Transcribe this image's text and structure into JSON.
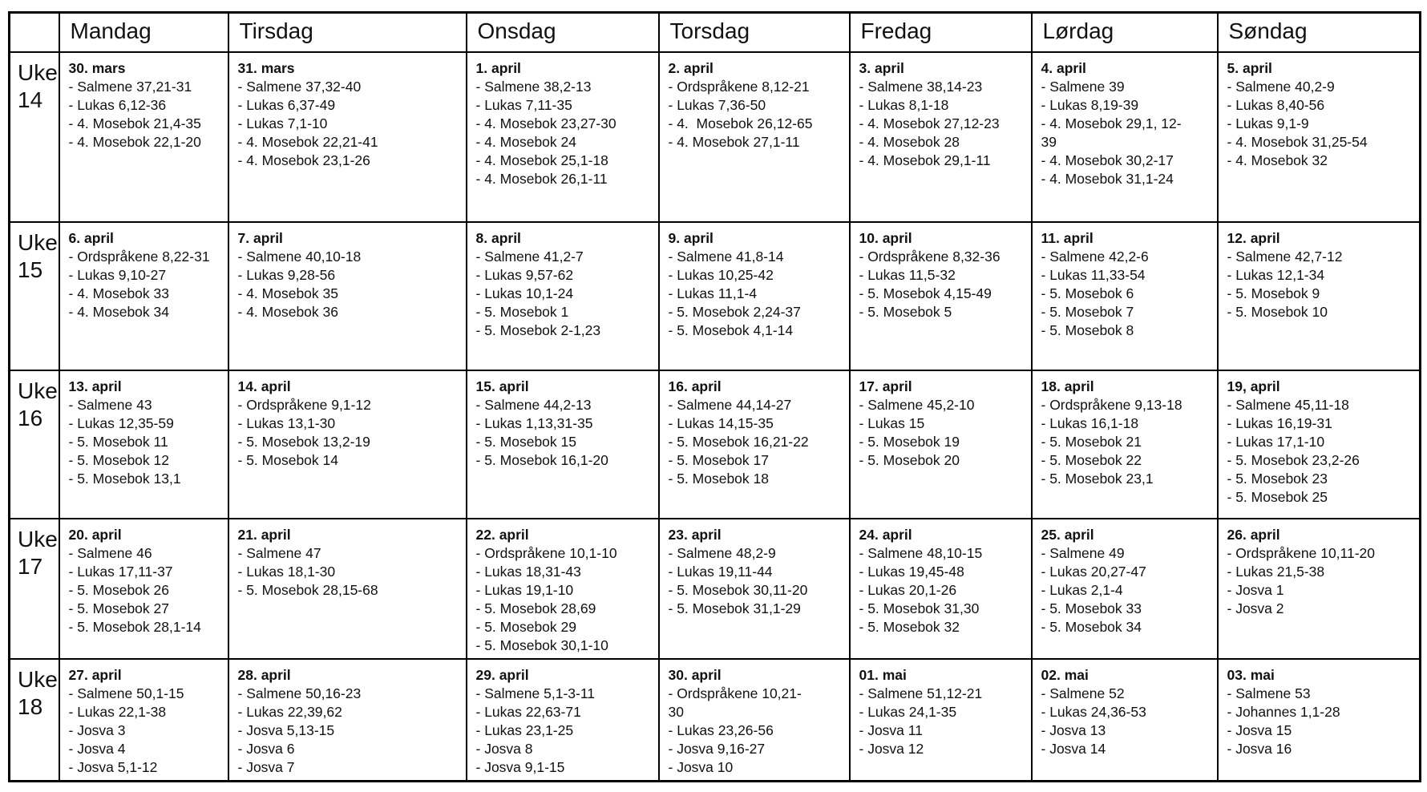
{
  "colors": {
    "bg": "#ffffff",
    "text": "#111111",
    "border": "#000000"
  },
  "table": {
    "corner_label": "",
    "day_headers": [
      "Mandag",
      "Tirsdag",
      "Onsdag",
      "Torsdag",
      "Fredag",
      "Lørdag",
      "Søndag"
    ],
    "weeks": [
      {
        "label_top": "Uke",
        "label_num": "14",
        "days": [
          {
            "date": "30. mars",
            "readings": [
              "- Salmene 37,21-31",
              "- Lukas 6,12-36",
              "- 4. Mosebok 21,4-35",
              "- 4. Mosebok 22,1-20"
            ]
          },
          {
            "date": "31. mars",
            "readings": [
              "- Salmene 37,32-40",
              "- Lukas 6,37-49",
              "- Lukas 7,1-10",
              "- 4. Mosebok 22,21-41",
              "- 4. Mosebok 23,1-26"
            ]
          },
          {
            "date": "1. april",
            "readings": [
              "- Salmene 38,2-13",
              "- Lukas 7,11-35",
              "- 4. Mosebok 23,27-30",
              "- 4. Mosebok 24",
              "- 4. Mosebok 25,1-18",
              "- 4. Mosebok 26,1-11"
            ]
          },
          {
            "date": "2. april",
            "readings": [
              "- Ordspråkene 8,12-21",
              "- Lukas 7,36-50",
              "- 4.  Mosebok 26,12-65",
              "- 4. Mosebok 27,1-11"
            ]
          },
          {
            "date": "3. april",
            "readings": [
              "- Salmene 38,14-23",
              "- Lukas 8,1-18",
              "- 4. Mosebok 27,12-23",
              "- 4. Mosebok 28",
              "- 4. Mosebok 29,1-11"
            ]
          },
          {
            "date": "4. april",
            "readings": [
              "- Salmene 39",
              "- Lukas 8,19-39",
              "- 4. Mosebok 29,1, 12-\n39",
              "- 4. Mosebok 30,2-17",
              "- 4. Mosebok 31,1-24"
            ]
          },
          {
            "date": "5. april",
            "readings": [
              "- Salmene 40,2-9",
              "- Lukas 8,40-56",
              "- Lukas 9,1-9",
              "- 4. Mosebok 31,25-54",
              "- 4. Mosebok 32"
            ]
          }
        ]
      },
      {
        "label_top": "Uke",
        "label_num": "15",
        "days": [
          {
            "date": "6. april",
            "readings": [
              "- Ordspråkene 8,22-31",
              "- Lukas 9,10-27",
              "- 4. Mosebok 33",
              "- 4. Mosebok 34"
            ]
          },
          {
            "date": "7. april",
            "readings": [
              "- Salmene 40,10-18",
              "- Lukas 9,28-56",
              "- 4. Mosebok 35",
              "- 4. Mosebok 36"
            ]
          },
          {
            "date": "8. april",
            "readings": [
              "- Salmene 41,2-7",
              "- Lukas 9,57-62",
              "- Lukas 10,1-24",
              "- 5. Mosebok 1",
              "- 5. Mosebok 2-1,23"
            ]
          },
          {
            "date": "9. april",
            "readings": [
              "- Salmene 41,8-14",
              "- Lukas 10,25-42",
              "- Lukas 11,1-4",
              "- 5. Mosebok 2,24-37",
              "- 5. Mosebok 4,1-14"
            ]
          },
          {
            "date": "10. april",
            "readings": [
              "- Ordspråkene 8,32-36",
              "- Lukas 11,5-32",
              "- 5. Mosebok 4,15-49",
              "- 5. Mosebok 5"
            ]
          },
          {
            "date": "11. april",
            "readings": [
              "- Salmene 42,2-6",
              "- Lukas 11,33-54",
              "- 5. Mosebok 6",
              "- 5. Mosebok 7",
              "- 5. Mosebok 8"
            ]
          },
          {
            "date": "12. april",
            "readings": [
              "- Salmene 42,7-12",
              "- Lukas 12,1-34",
              "- 5. Mosebok 9",
              "- 5. Mosebok 10"
            ]
          }
        ]
      },
      {
        "label_top": "Uke",
        "label_num": "16",
        "days": [
          {
            "date": "13. april",
            "readings": [
              "- Salmene 43",
              "- Lukas 12,35-59",
              "- 5. Mosebok 11",
              "- 5. Mosebok 12",
              "- 5. Mosebok 13,1"
            ]
          },
          {
            "date": "14. april",
            "readings": [
              "- Ordspråkene 9,1-12",
              "- Lukas 13,1-30",
              "- 5. Mosebok 13,2-19",
              "- 5. Mosebok 14"
            ]
          },
          {
            "date": "15. april",
            "readings": [
              "- Salmene 44,2-13",
              "- Lukas 1,13,31-35",
              "- 5. Mosebok 15",
              "- 5. Mosebok 16,1-20"
            ]
          },
          {
            "date": "16. april",
            "readings": [
              "- Salmene 44,14-27",
              "- Lukas 14,15-35",
              "- 5. Mosebok 16,21-22",
              "- 5. Mosebok 17",
              "- 5. Mosebok 18"
            ]
          },
          {
            "date": "17. april",
            "readings": [
              "- Salmene 45,2-10",
              "- Lukas 15",
              "- 5. Mosebok 19",
              "- 5. Mosebok 20"
            ]
          },
          {
            "date": "18. april",
            "readings": [
              "- Ordspråkene 9,13-18",
              "- Lukas 16,1-18",
              "- 5. Mosebok 21",
              "- 5. Mosebok 22",
              "- 5. Mosebok 23,1"
            ]
          },
          {
            "date": "19, april",
            "readings": [
              "- Salmene 45,11-18",
              "- Lukas 16,19-31",
              "- Lukas 17,1-10",
              "- 5. Mosebok 23,2-26",
              "- 5. Mosebok 23",
              "- 5. Mosebok 25"
            ]
          }
        ]
      },
      {
        "label_top": "Uke",
        "label_num": "17",
        "days": [
          {
            "date": "20. april",
            "readings": [
              "- Salmene 46",
              "- Lukas 17,11-37",
              "- 5. Mosebok 26",
              "- 5. Mosebok 27",
              "- 5. Mosebok 28,1-14"
            ]
          },
          {
            "date": "21. april",
            "readings": [
              "- Salmene 47",
              "- Lukas 18,1-30",
              "- 5. Mosebok 28,15-68"
            ]
          },
          {
            "date": "22. april",
            "readings": [
              "- Ordspråkene 10,1-10",
              "- Lukas 18,31-43",
              "- Lukas 19,1-10",
              "- 5. Mosebok 28,69",
              "- 5. Mosebok 29",
              "- 5. Mosebok 30,1-10"
            ]
          },
          {
            "date": "23. april",
            "readings": [
              "- Salmene 48,2-9",
              "- Lukas 19,11-44",
              "- 5. Mosebok 30,11-20",
              "- 5. Mosebok 31,1-29"
            ]
          },
          {
            "date": "24. april",
            "readings": [
              "- Salmene 48,10-15",
              "- Lukas 19,45-48",
              "- Lukas 20,1-26",
              "- 5. Mosebok 31,30",
              "- 5. Mosebok 32"
            ]
          },
          {
            "date": "25. april",
            "readings": [
              "- Salmene 49",
              "- Lukas 20,27-47",
              "- Lukas 2,1-4",
              "- 5. Mosebok 33",
              "- 5. Mosebok 34"
            ]
          },
          {
            "date": "26. april",
            "readings": [
              "- Ordspråkene 10,11-20",
              "- Lukas 21,5-38",
              "- Josva 1",
              "- Josva 2"
            ]
          }
        ]
      },
      {
        "label_top": "Uke",
        "label_num": "18",
        "days": [
          {
            "date": "27. april",
            "readings": [
              "- Salmene 50,1-15",
              "- Lukas 22,1-38",
              "- Josva 3",
              "- Josva 4",
              "- Josva 5,1-12"
            ]
          },
          {
            "date": "28. april",
            "readings": [
              "- Salmene 50,16-23",
              "- Lukas 22,39,62",
              "- Josva 5,13-15",
              "- Josva 6",
              "- Josva 7"
            ]
          },
          {
            "date": "29. april",
            "readings": [
              "- Salmene 5,1-3-11",
              "- Lukas 22,63-71",
              "- Lukas 23,1-25",
              "- Josva 8",
              "- Josva 9,1-15"
            ]
          },
          {
            "date": "30. april",
            "readings": [
              "- Ordspråkene 10,21-\n30",
              "- Lukas 23,26-56",
              "- Josva 9,16-27",
              "- Josva 10"
            ]
          },
          {
            "date": "01. mai",
            "readings": [
              "- Salmene 51,12-21",
              "- Lukas 24,1-35",
              "- Josva 11",
              "- Josva 12"
            ]
          },
          {
            "date": "02. mai",
            "readings": [
              "- Salmene 52",
              "- Lukas 24,36-53",
              "- Josva 13",
              "- Josva 14"
            ]
          },
          {
            "date": "03. mai",
            "readings": [
              "- Salmene 53",
              "- Johannes 1,1-28",
              "- Josva 15",
              "- Josva 16"
            ]
          }
        ]
      }
    ]
  }
}
